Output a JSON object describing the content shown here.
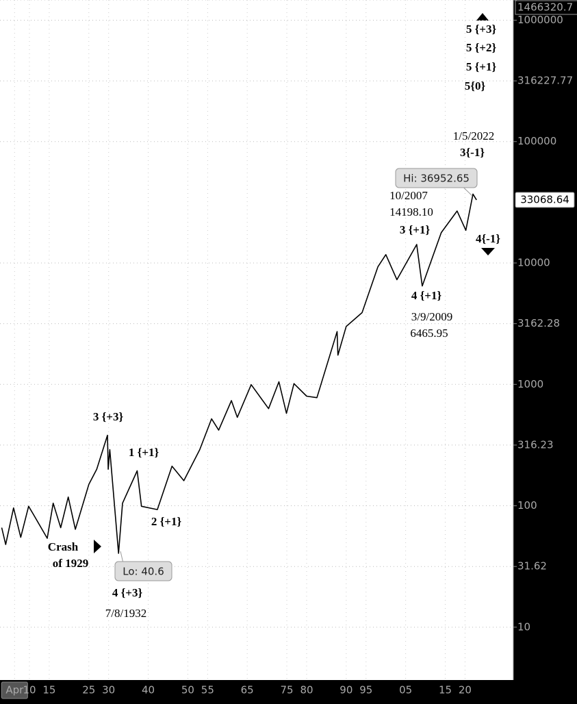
{
  "chart_data": {
    "type": "line",
    "log_scale": true,
    "grid": true,
    "xlim": [
      1902.57,
      2032.2
    ],
    "xticks": [
      {
        "value": 1906.25,
        "label": "Apr"
      },
      {
        "value": 1910,
        "label": "10"
      },
      {
        "value": 1915,
        "label": "15"
      },
      {
        "value": 1925,
        "label": "25"
      },
      {
        "value": 1930,
        "label": "30"
      },
      {
        "value": 1940,
        "label": "40"
      },
      {
        "value": 1950,
        "label": "50"
      },
      {
        "value": 1955,
        "label": "55"
      },
      {
        "value": 1965,
        "label": "65"
      },
      {
        "value": 1975,
        "label": "75"
      },
      {
        "value": 1980,
        "label": "80"
      },
      {
        "value": 1990,
        "label": "90"
      },
      {
        "value": 1995,
        "label": "95"
      },
      {
        "value": 2005,
        "label": "05"
      },
      {
        "value": 2015,
        "label": "15"
      },
      {
        "value": 2020,
        "label": "20"
      }
    ],
    "ylim": [
      3.67,
      1466320.7
    ],
    "yticks": [
      10,
      31.62,
      100,
      316.23,
      1000,
      3162.28,
      10000,
      100000,
      316227.77,
      1000000,
      1466320.7
    ],
    "series": [
      {
        "color": "#000000",
        "x": [
          1903.0,
          1904.0,
          1906.0,
          1907.8,
          1909.8,
          1911.0,
          1914.5,
          1916.0,
          1917.9,
          1919.8,
          1921.6,
          1925.0,
          1927.0,
          1929.7,
          1929.9,
          1930.3,
          1932.5,
          1933.5,
          1937.2,
          1938.3,
          1942.3,
          1946.0,
          1949.0,
          1953.0,
          1956.0,
          1957.8,
          1961.0,
          1962.5,
          1966.0,
          1970.4,
          1973.0,
          1974.9,
          1976.8,
          1980.0,
          1982.6,
          1987.7,
          1987.9,
          1990.0,
          1994.0,
          1998.0,
          2000.0,
          2002.8,
          2007.8,
          2009.2,
          2014.0,
          2018.0,
          2020.2,
          2022.0,
          2022.9
        ],
        "values": [
          66,
          48,
          96,
          55,
          99,
          85,
          54,
          105,
          66,
          118,
          64,
          150,
          200,
          381,
          200,
          290,
          40.6,
          105,
          194,
          99,
          93,
          212,
          161,
          290,
          520,
          420,
          735,
          535,
          995,
          631,
          1051,
          577,
          1014,
          800,
          777,
          2722,
          1740,
          2999,
          3900,
          9300,
          11722,
          7286,
          14198.1,
          6465.95,
          17800,
          26800,
          18590,
          36952.65,
          33068.64
        ]
      }
    ],
    "annotations": [
      "3 {+3}",
      "1 {+1}",
      "2 {+1}",
      "Crash",
      "of 1929",
      "4 {+3}",
      "7/8/1932",
      "10/2007",
      "14198.10",
      "3 {+1}",
      "4 {+1}",
      "3/9/2009",
      "6465.95",
      "1/5/2022",
      "3{-1}",
      "4{-1}",
      "5 {+3}",
      "5 {+2}",
      "5 {+1}",
      "5{0}"
    ],
    "callouts": [
      "Hi: 36952.65",
      "Lo: 40.6"
    ]
  }
}
